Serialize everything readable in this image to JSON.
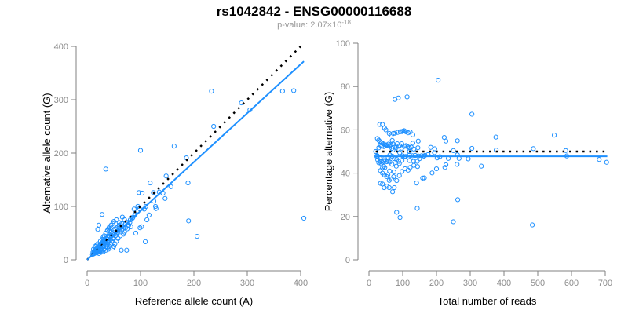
{
  "title": "rs1042842 - ENSG00000116688",
  "subtitle_prefix": "p-value: 2.07×10",
  "subtitle_exponent": "-18",
  "colors": {
    "points": "#1e90ff",
    "fit": "#1e90ff",
    "reference": "#000000",
    "axis": "#808080"
  },
  "chart_data": [
    {
      "type": "scatter",
      "xlabel": "Reference allele count (A)",
      "ylabel": "Alternative allele count (G)",
      "xlim": [
        0,
        400
      ],
      "ylim": [
        0,
        400
      ],
      "xticks": [
        "0",
        "100",
        "200",
        "300",
        "400"
      ],
      "yticks": [
        "0",
        "100",
        "200",
        "300",
        "400"
      ],
      "fit_line": {
        "slope": 0.916,
        "intercept": 0
      },
      "reference_line": {
        "slope": 1,
        "intercept": 0,
        "style": "dotted"
      },
      "points": [
        [
          35,
          170
        ],
        [
          100,
          205
        ],
        [
          163,
          213
        ],
        [
          233,
          316
        ],
        [
          237,
          250
        ],
        [
          289,
          294
        ],
        [
          305,
          281
        ],
        [
          366,
          316
        ],
        [
          387,
          317
        ],
        [
          406,
          78
        ],
        [
          186,
          191
        ],
        [
          189,
          144
        ],
        [
          190,
          73
        ],
        [
          206,
          44
        ],
        [
          118,
          144
        ],
        [
          148,
          157
        ],
        [
          157,
          137
        ],
        [
          146,
          115
        ],
        [
          109,
          34
        ],
        [
          28,
          85
        ],
        [
          22,
          65
        ],
        [
          20,
          57
        ],
        [
          74,
          18
        ],
        [
          64,
          18
        ],
        [
          97,
          126
        ],
        [
          103,
          125
        ],
        [
          112,
          75
        ],
        [
          116,
          84
        ],
        [
          129,
          96
        ],
        [
          128,
          100
        ],
        [
          124,
          126
        ],
        [
          91,
          50
        ],
        [
          99,
          60
        ],
        [
          102,
          62
        ],
        [
          88,
          95
        ],
        [
          95,
          100
        ],
        [
          107,
          95
        ],
        [
          110,
          100
        ],
        [
          142,
          125
        ],
        [
          135,
          127
        ],
        [
          125,
          110
        ],
        [
          85,
          78
        ],
        [
          80,
          70
        ],
        [
          78,
          65
        ],
        [
          82,
          62
        ],
        [
          72,
          60
        ],
        [
          70,
          75
        ],
        [
          66,
          80
        ],
        [
          60,
          70
        ],
        [
          62,
          58
        ],
        [
          58,
          62
        ],
        [
          55,
          50
        ],
        [
          52,
          48
        ],
        [
          50,
          55
        ],
        [
          48,
          40
        ],
        [
          46,
          45
        ],
        [
          45,
          52
        ],
        [
          44,
          38
        ],
        [
          42,
          44
        ],
        [
          41,
          60
        ],
        [
          40,
          35
        ],
        [
          39,
          42
        ],
        [
          38,
          30
        ],
        [
          37,
          40
        ],
        [
          36,
          33
        ],
        [
          35,
          36
        ],
        [
          34,
          28
        ],
        [
          33,
          35
        ],
        [
          32,
          30
        ],
        [
          31,
          38
        ],
        [
          30,
          27
        ],
        [
          29,
          32
        ],
        [
          28,
          25
        ],
        [
          27,
          30
        ],
        [
          26,
          22
        ],
        [
          25,
          28
        ],
        [
          24,
          20
        ],
        [
          23,
          26
        ],
        [
          22,
          18
        ],
        [
          21,
          24
        ],
        [
          20,
          16
        ],
        [
          19,
          22
        ],
        [
          18,
          15
        ],
        [
          17,
          20
        ],
        [
          16,
          13
        ],
        [
          15,
          18
        ],
        [
          14,
          12
        ],
        [
          13,
          16
        ],
        [
          12,
          11
        ],
        [
          11,
          14
        ],
        [
          10,
          10
        ],
        [
          12,
          20
        ],
        [
          15,
          25
        ],
        [
          18,
          28
        ],
        [
          20,
          30
        ],
        [
          25,
          35
        ],
        [
          28,
          38
        ],
        [
          30,
          42
        ],
        [
          32,
          45
        ],
        [
          35,
          50
        ],
        [
          38,
          55
        ],
        [
          40,
          58
        ],
        [
          42,
          62
        ],
        [
          45,
          65
        ],
        [
          48,
          68
        ],
        [
          50,
          72
        ],
        [
          55,
          75
        ],
        [
          60,
          60
        ],
        [
          65,
          55
        ],
        [
          68,
          48
        ],
        [
          70,
          52
        ],
        [
          75,
          58
        ],
        [
          62,
          45
        ],
        [
          58,
          40
        ],
        [
          55,
          35
        ],
        [
          52,
          30
        ],
        [
          50,
          25
        ],
        [
          48,
          22
        ],
        [
          45,
          28
        ],
        [
          42,
          25
        ],
        [
          40,
          20
        ],
        [
          38,
          22
        ],
        [
          35,
          18
        ],
        [
          32,
          20
        ],
        [
          30,
          15
        ],
        [
          28,
          18
        ],
        [
          26,
          14
        ],
        [
          24,
          16
        ],
        [
          22,
          12
        ],
        [
          20,
          14
        ],
        [
          55,
          60
        ],
        [
          60,
          65
        ],
        [
          65,
          68
        ],
        [
          52,
          58
        ],
        [
          47,
          50
        ],
        [
          43,
          48
        ],
        [
          39,
          45
        ],
        [
          36,
          40
        ],
        [
          33,
          38
        ],
        [
          30,
          34
        ],
        [
          27,
          31
        ],
        [
          24,
          27
        ],
        [
          21,
          23
        ],
        [
          18,
          20
        ],
        [
          16,
          18
        ],
        [
          14,
          15
        ],
        [
          44,
          30
        ],
        [
          46,
          35
        ],
        [
          50,
          40
        ],
        [
          53,
          45
        ],
        [
          57,
          52
        ],
        [
          61,
          55
        ],
        [
          67,
          62
        ],
        [
          71,
          66
        ],
        [
          76,
          70
        ],
        [
          81,
          75
        ],
        [
          86,
          80
        ],
        [
          90,
          85
        ],
        [
          94,
          90
        ],
        [
          98,
          96
        ],
        [
          36,
          25
        ],
        [
          34,
          22
        ],
        [
          31,
          26
        ],
        [
          29,
          24
        ],
        [
          27,
          20
        ],
        [
          25,
          19
        ],
        [
          23,
          17
        ],
        [
          19,
          17
        ],
        [
          17,
          15
        ],
        [
          13,
          12
        ]
      ]
    },
    {
      "type": "scatter",
      "xlabel": "Total number of reads",
      "ylabel": "Percentage alternative (G)",
      "xlim": [
        0,
        700
      ],
      "ylim": [
        0,
        100
      ],
      "xticks": [
        "0",
        "100",
        "200",
        "300",
        "400",
        "500",
        "600",
        "700"
      ],
      "yticks": [
        "0",
        "20",
        "40",
        "60",
        "80",
        "100"
      ],
      "derived_from": "x = A + G, y = 100 * G / (A + G) using points of the first chart",
      "fit_line": {
        "y": 47.8
      },
      "reference_line": {
        "y": 50,
        "style": "dotted"
      }
    }
  ]
}
